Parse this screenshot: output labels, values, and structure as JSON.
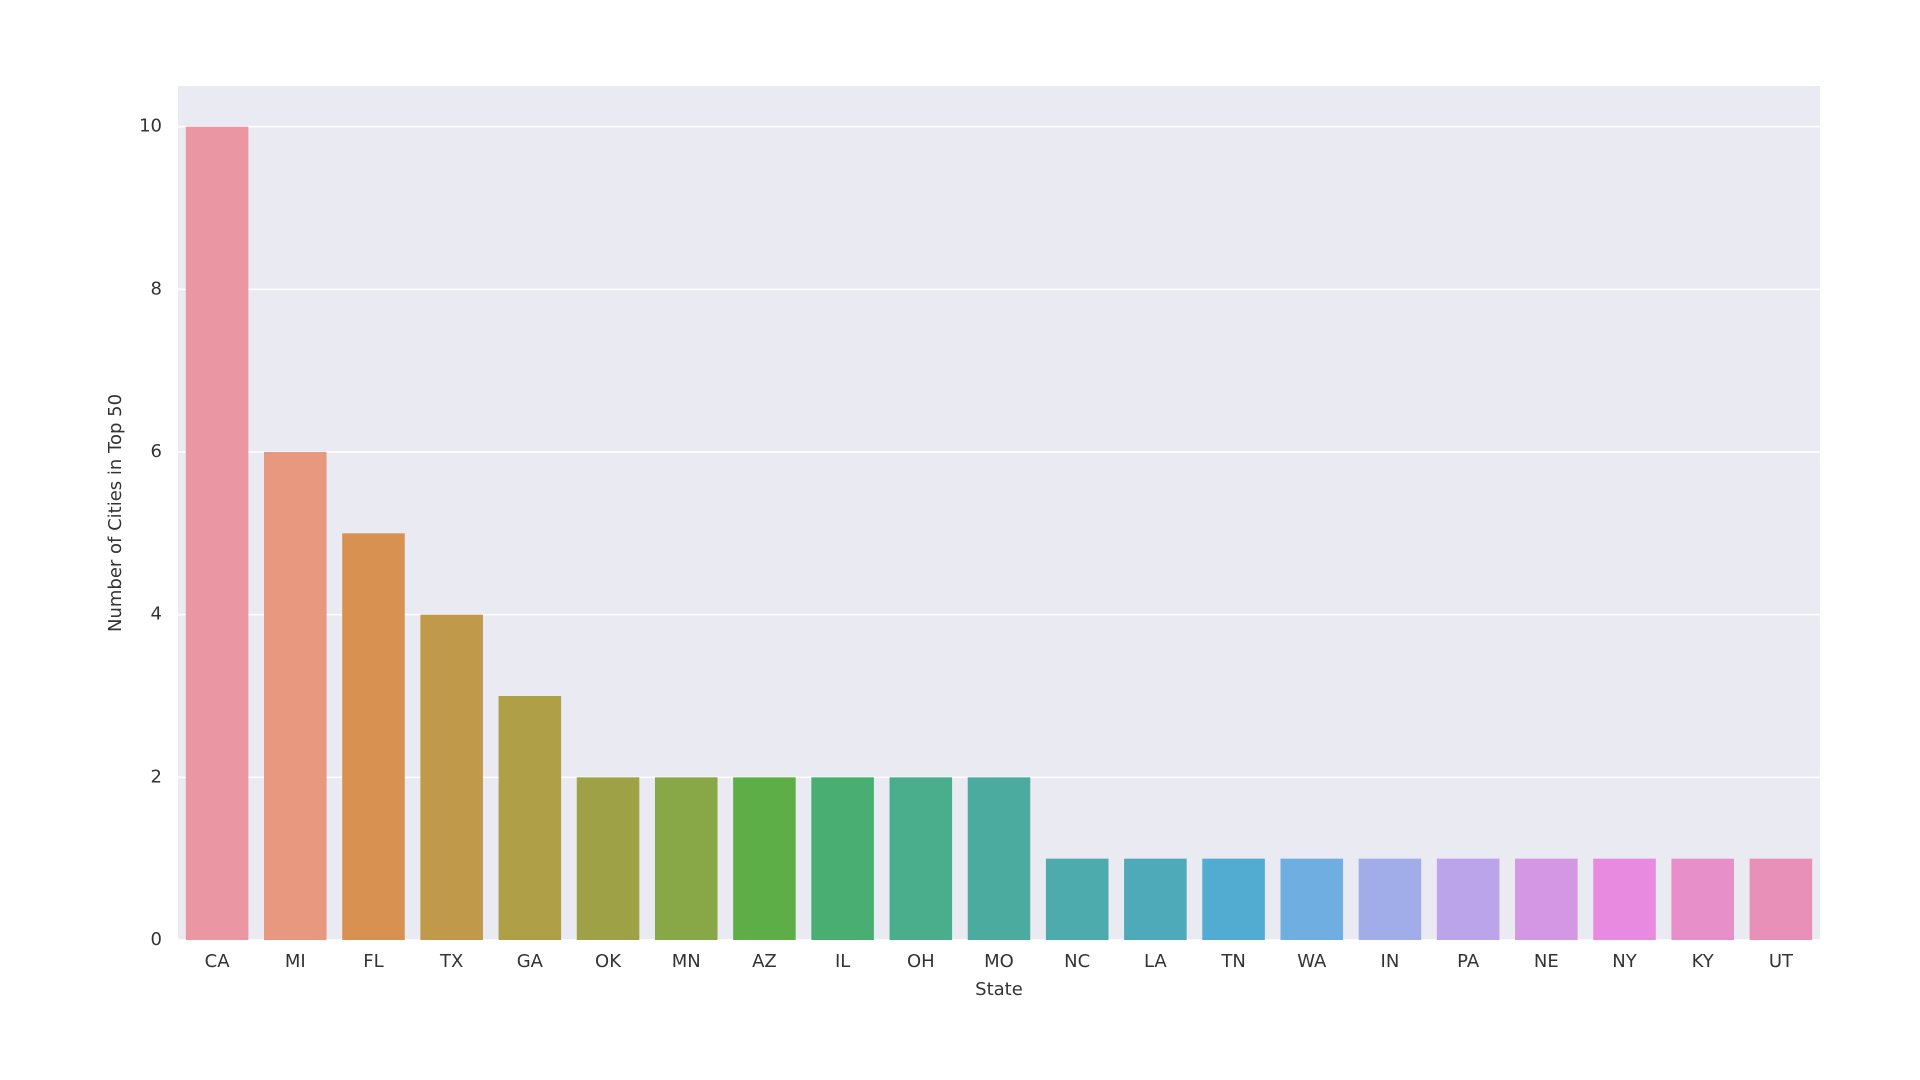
{
  "chart_data": {
    "type": "bar",
    "x_label": "State",
    "y_label": "Number of Cities in Top 50",
    "categories": [
      "CA",
      "MI",
      "FL",
      "TX",
      "GA",
      "OK",
      "MN",
      "AZ",
      "IL",
      "OH",
      "MO",
      "NC",
      "LA",
      "TN",
      "WA",
      "IN",
      "PA",
      "NE",
      "NY",
      "KY",
      "UT"
    ],
    "values": [
      10,
      6,
      5,
      4,
      3,
      2,
      2,
      2,
      2,
      2,
      2,
      1,
      1,
      1,
      1,
      1,
      1,
      1,
      1,
      1,
      1
    ],
    "colors": [
      "#ea96a3",
      "#e8987f",
      "#d89150",
      "#c09a4a",
      "#afa048",
      "#9ea146",
      "#88a848",
      "#5eae48",
      "#48ae72",
      "#4aae8d",
      "#4bab9f",
      "#4dabae",
      "#4eaab8",
      "#52abd0",
      "#6eaee0",
      "#a0ade8",
      "#bca4ea",
      "#d497e4",
      "#e88ae0",
      "#e68fc8",
      "#e890b8"
    ],
    "ylim": [
      0,
      10.5
    ],
    "yticks": [
      0,
      2,
      4,
      6,
      8,
      10
    ],
    "grid": true
  }
}
